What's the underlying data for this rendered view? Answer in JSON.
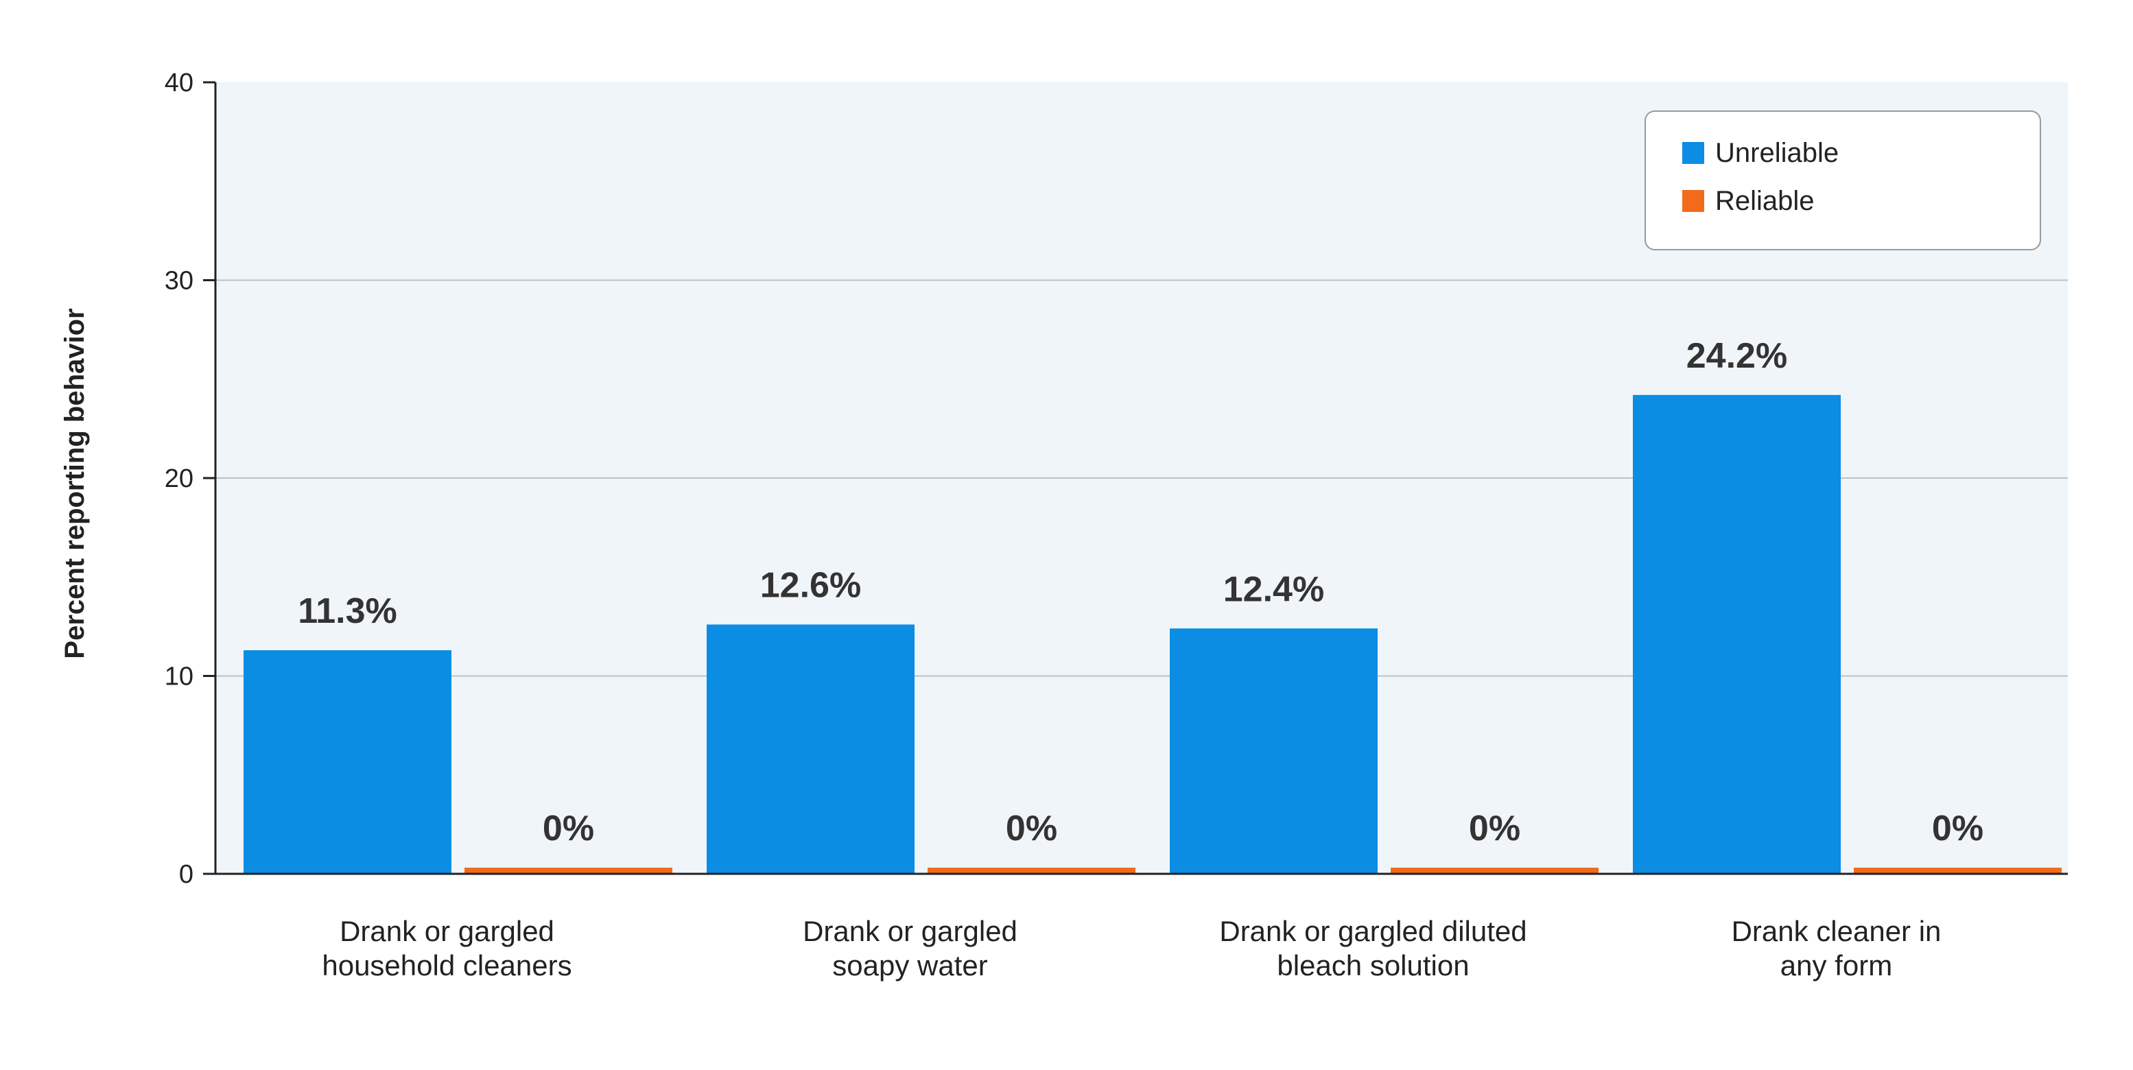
{
  "chart_data": {
    "type": "bar",
    "title": "",
    "xlabel": "",
    "ylabel": "Percent reporting behavior",
    "ylim": [
      0,
      40
    ],
    "yticks": [
      0,
      10,
      20,
      30,
      40
    ],
    "grid": true,
    "legend_position": "top-right",
    "categories": [
      [
        "Drank or gargled",
        "household cleaners"
      ],
      [
        "Drank or gargled",
        "soapy water"
      ],
      [
        "Drank or gargled diluted",
        "bleach solution"
      ],
      [
        "Drank cleaner in",
        "any form"
      ]
    ],
    "series": [
      {
        "name": "Unreliable",
        "color": "#0B8DE3",
        "values": [
          11.3,
          12.6,
          12.4,
          24.2
        ],
        "labels": [
          "11.3%",
          "12.6%",
          "12.4%",
          "24.2%"
        ]
      },
      {
        "name": "Reliable",
        "color": "#F26B1D",
        "values": [
          0,
          0,
          0,
          0
        ],
        "labels": [
          "0%",
          "0%",
          "0%",
          "0%"
        ]
      }
    ],
    "plot_background": "#F0F5F9",
    "grid_color": "#B9C2CA"
  }
}
